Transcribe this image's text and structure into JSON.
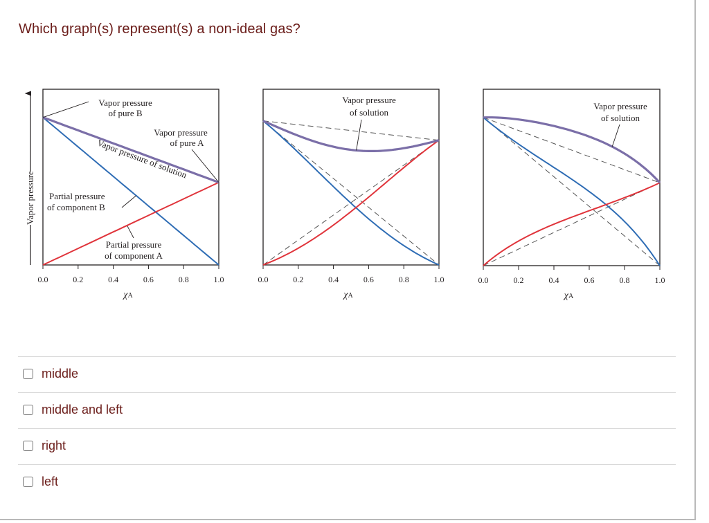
{
  "question": {
    "text": "Which graph(s) represent(s) a non-ideal gas?"
  },
  "colors": {
    "question_text": "#6b1d1a",
    "solution_line": "#7b6fa8",
    "component_b_line": "#2f6db5",
    "component_a_line": "#e0343b",
    "ideal_dashed": "#555555",
    "frame": "#231f20"
  },
  "options": [
    {
      "label": "middle",
      "checked": false
    },
    {
      "label": "middle and left",
      "checked": false
    },
    {
      "label": "right",
      "checked": false
    },
    {
      "label": "left",
      "checked": false
    }
  ],
  "chart_data": [
    {
      "type": "line",
      "position": "left",
      "title": "",
      "xlabel": "χA",
      "ylabel": "Vapor pressure",
      "xlim": [
        0,
        1
      ],
      "ylim": [
        0,
        1
      ],
      "x_ticks": [
        "0.0",
        "0.2",
        "0.4",
        "0.6",
        "0.8",
        "1.0"
      ],
      "grid": false,
      "pure_B": 0.84,
      "pure_A": 0.47,
      "deviation": "ideal",
      "x": [
        0,
        0.2,
        0.4,
        0.6,
        0.8,
        1.0
      ],
      "series": [
        {
          "name": "Vapor pressure of solution",
          "values": [
            0.84,
            0.766,
            0.692,
            0.618,
            0.544,
            0.47
          ]
        },
        {
          "name": "Partial pressure of component B",
          "values": [
            0.84,
            0.672,
            0.504,
            0.336,
            0.168,
            0.0
          ]
        },
        {
          "name": "Partial pressure of component A",
          "values": [
            0.0,
            0.094,
            0.188,
            0.282,
            0.376,
            0.47
          ]
        }
      ],
      "annotations": [
        {
          "id": "pureB",
          "lines": [
            "Vapor pressure",
            "of pure B"
          ]
        },
        {
          "id": "pureA",
          "lines": [
            "Vapor pressure",
            "of pure A"
          ]
        },
        {
          "id": "solution",
          "lines": [
            "Vapor pressure of solution"
          ]
        },
        {
          "id": "partialB",
          "lines": [
            "Partial pressure",
            "of component B"
          ]
        },
        {
          "id": "partialA",
          "lines": [
            "Partial pressure",
            "of component A"
          ]
        }
      ]
    },
    {
      "type": "line",
      "position": "middle",
      "title": "",
      "xlabel": "χA",
      "ylabel": "",
      "xlim": [
        0,
        1
      ],
      "ylim": [
        0,
        1
      ],
      "x_ticks": [
        "0.0",
        "0.2",
        "0.4",
        "0.6",
        "0.8",
        "1.0"
      ],
      "grid": false,
      "pure_B": 0.82,
      "pure_A": 0.71,
      "deviation": "negative",
      "margules_w": -0.62,
      "x": [
        0,
        0.2,
        0.4,
        0.6,
        0.8,
        1.0
      ],
      "series": [
        {
          "name": "Vapor pressure of solution",
          "values": [
            0.82,
            0.69,
            0.63,
            0.62,
            0.64,
            0.71
          ]
        },
        {
          "name": "Partial pressure of component B",
          "values": [
            0.82,
            0.641,
            0.44,
            0.248,
            0.094,
            0.0
          ]
        },
        {
          "name": "Partial pressure of component A",
          "values": [
            0.0,
            0.077,
            0.182,
            0.324,
            0.505,
            0.71
          ]
        }
      ],
      "dashed_ideal": true,
      "annotations": [
        {
          "id": "solution",
          "lines": [
            "Vapor pressure",
            "of solution"
          ]
        }
      ]
    },
    {
      "type": "line",
      "position": "right",
      "title": "",
      "xlabel": "χA",
      "ylabel": "",
      "xlim": [
        0,
        1
      ],
      "ylim": [
        0,
        1
      ],
      "x_ticks": [
        "0.0",
        "0.2",
        "0.4",
        "0.6",
        "0.8",
        "1.0"
      ],
      "grid": false,
      "pure_B": 0.84,
      "pure_A": 0.47,
      "deviation": "positive",
      "margules_w": 0.62,
      "x": [
        0,
        0.2,
        0.4,
        0.6,
        0.8,
        1.0
      ],
      "series": [
        {
          "name": "Vapor pressure of solution",
          "values": [
            0.84,
            0.83,
            0.8,
            0.74,
            0.64,
            0.47
          ]
        },
        {
          "name": "Partial pressure of component B",
          "values": [
            0.84,
            0.689,
            0.555,
            0.404,
            0.218,
            0.0
          ]
        },
        {
          "name": "Partial pressure of component A",
          "values": [
            0.0,
            0.139,
            0.252,
            0.339,
            0.401,
            0.47
          ]
        }
      ],
      "dashed_ideal": true,
      "annotations": [
        {
          "id": "solution",
          "lines": [
            "Vapor pressure",
            "of solution"
          ]
        }
      ]
    }
  ]
}
